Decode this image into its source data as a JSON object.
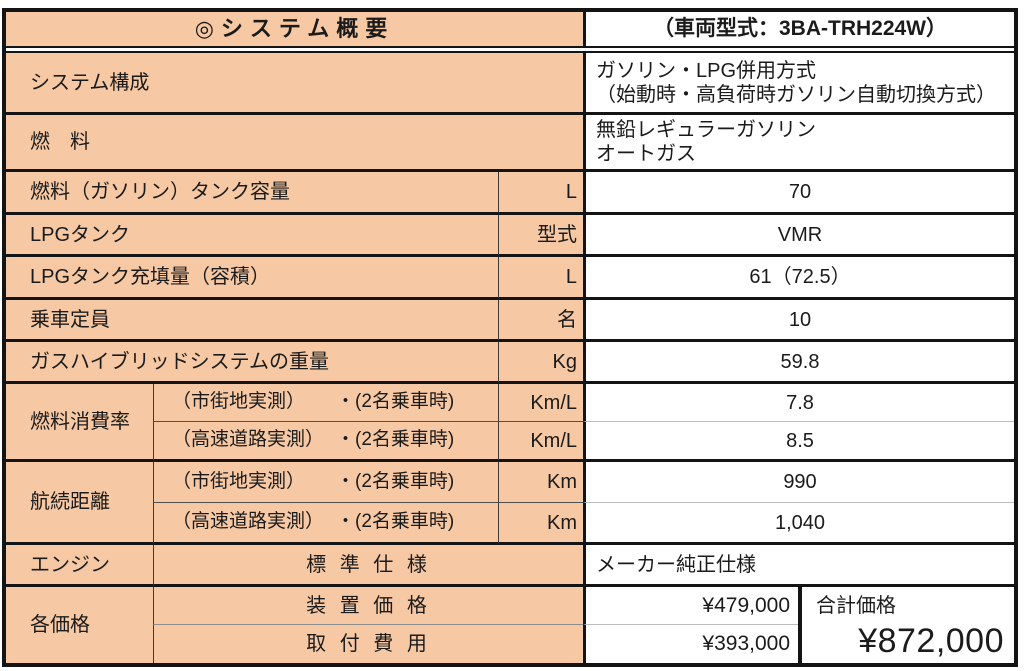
{
  "header": {
    "title": "◎システム概要",
    "vehicle_model": "（車両型式：3BA-TRH224W）"
  },
  "rows": {
    "system": {
      "label": "システム構成",
      "value_line1": "ガソリン・LPG併用方式",
      "value_line2": "（始動時・高負荷時ガソリン自動切換方式）"
    },
    "fuel": {
      "label": "燃　料",
      "value_line1": "無鉛レギュラーガソリン",
      "value_line2": "オートガス"
    },
    "tank_capacity": {
      "label": "燃料（ガソリン）タンク容量",
      "unit": "L",
      "value": "70"
    },
    "lpg_tank": {
      "label": "LPGタンク",
      "unit": "型式",
      "value": "VMR"
    },
    "lpg_fill": {
      "label": "LPGタンク充填量（容積）",
      "unit": "L",
      "value": "61（72.5）"
    },
    "passengers": {
      "label": "乗車定員",
      "unit": "名",
      "value": "10"
    },
    "weight": {
      "label": "ガスハイブリッドシステムの重量",
      "unit": "Kg",
      "value": "59.8"
    },
    "consumption": {
      "label": "燃料消費率",
      "rows": [
        {
          "condition": "（市街地実測）",
          "note": "・(2名乗車時)",
          "unit": "Km/L",
          "value": "7.8"
        },
        {
          "condition": "（高速道路実測）",
          "note": "・(2名乗車時)",
          "unit": "Km/L",
          "value": "8.5"
        }
      ]
    },
    "range": {
      "label": "航続距離",
      "rows": [
        {
          "condition": "（市街地実測）",
          "note": "・(2名乗車時)",
          "unit": "Km",
          "value": "990"
        },
        {
          "condition": "（高速道路実測）",
          "note": "・(2名乗車時)",
          "unit": "Km",
          "value": "1,040"
        }
      ]
    },
    "engine": {
      "label": "エンジン",
      "spec": "標 準 仕 様",
      "value": "メーカー純正仕様"
    },
    "prices": {
      "label": "各価格",
      "rows": [
        {
          "name": "装 置 価 格",
          "value": "¥479,000"
        },
        {
          "name": "取 付 費 用",
          "value": "¥393,000"
        }
      ],
      "total_label": "合計価格",
      "total_value": "¥872,000"
    }
  },
  "colors": {
    "accent_peach": "#f6c8a3",
    "border_black": "#141414"
  }
}
